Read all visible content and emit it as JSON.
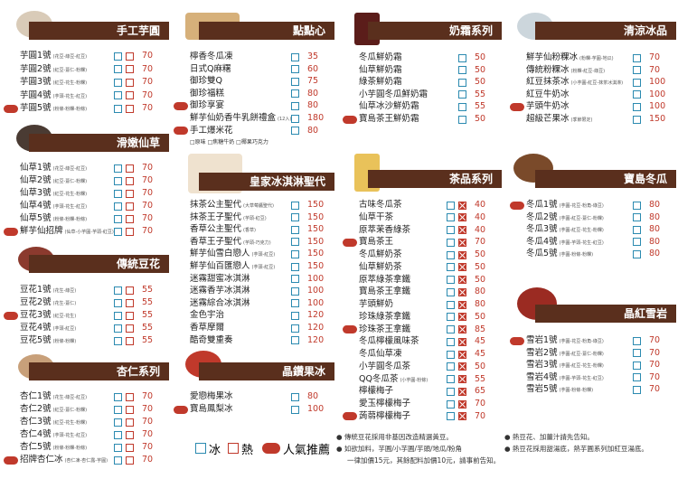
{
  "sections": [
    {
      "title": "手工芋圓",
      "boxes": [
        "ice",
        "hot"
      ],
      "items": [
        {
          "name": "芋圓1號",
          "note": "(花豆-綠豆-紅豆)",
          "price": "70"
        },
        {
          "name": "芋圓2號",
          "note": "(紅豆-薏仁-粉粿)",
          "price": "70"
        },
        {
          "name": "芋圓3號",
          "note": "(紅豆-花生-粉粿)",
          "price": "70"
        },
        {
          "name": "芋圓4號",
          "note": "(芋頭-花生-紅豆)",
          "price": "70"
        },
        {
          "name": "芋圓5號",
          "note": "(粉條-粉粿-粉條)",
          "price": "70",
          "popular": true
        }
      ]
    },
    {
      "title": "滑嫩仙草",
      "boxes": [
        "ice",
        "hot"
      ],
      "items": [
        {
          "name": "仙草1號",
          "note": "(花豆-綠豆-紅豆)",
          "price": "70"
        },
        {
          "name": "仙草2號",
          "note": "(紅豆-薏仁-粉粿)",
          "price": "70"
        },
        {
          "name": "仙草3號",
          "note": "(紅豆-花生-粉粿)",
          "price": "70"
        },
        {
          "name": "仙草4號",
          "note": "(芋頭-花生-紅豆)",
          "price": "70"
        },
        {
          "name": "仙草5號",
          "note": "(粉條-粉粿-粉條)",
          "price": "70"
        },
        {
          "name": "鮮芋仙招牌",
          "note": "(仙草-小芋圓-芋頭-紅豆)",
          "price": "70",
          "popular": true
        }
      ]
    },
    {
      "title": "傳統豆花",
      "boxes": [
        "ice",
        "hot"
      ],
      "items": [
        {
          "name": "豆花1號",
          "note": "(花生-綠豆)",
          "price": "55"
        },
        {
          "name": "豆花2號",
          "note": "(花生-薏仁)",
          "price": "55"
        },
        {
          "name": "豆花3號",
          "note": "(紅豆-花生)",
          "price": "55",
          "popular": true
        },
        {
          "name": "豆花4號",
          "note": "(芋頭-紅豆)",
          "price": "55"
        },
        {
          "name": "豆花5號",
          "note": "(粉條-粉粿)",
          "price": "55"
        }
      ]
    },
    {
      "title": "杏仁系列",
      "boxes": [
        "ice",
        "hot"
      ],
      "items": [
        {
          "name": "杏仁1號",
          "note": "(花生-綠豆-紅豆)",
          "price": "70"
        },
        {
          "name": "杏仁2號",
          "note": "(紅豆-薏仁-粉粿)",
          "price": "70"
        },
        {
          "name": "杏仁3號",
          "note": "(紅豆-花生-粉粿)",
          "price": "70"
        },
        {
          "name": "杏仁4號",
          "note": "(芋頭-花生-紅豆)",
          "price": "70"
        },
        {
          "name": "杏仁5號",
          "note": "(粉條-粉粿-粉條)",
          "price": "70"
        },
        {
          "name": "招牌杏仁冰",
          "note": "(杏仁凍-杏仁露-芋圓)",
          "price": "70",
          "popular": true
        }
      ]
    },
    {
      "title": "點點心",
      "boxes": [
        "plain"
      ],
      "items": [
        {
          "name": "檸香冬瓜凍",
          "price": "35"
        },
        {
          "name": "日式Q麻糬",
          "price": "60"
        },
        {
          "name": "御珍雙Q",
          "price": "75"
        },
        {
          "name": "御珍福糕",
          "price": "80"
        },
        {
          "name": "御珍享宴",
          "price": "80",
          "popular": true
        },
        {
          "name": "鮮芋仙奶香牛乳餅禮盒",
          "note": "(12入)",
          "price": "180"
        },
        {
          "name": "手工爆米花",
          "price": "80",
          "popular": true
        }
      ],
      "subnote": "□原味 □焦糖牛奶 □椰果巧克力"
    },
    {
      "title": "皇家冰淇淋聖代",
      "boxes": [
        "ice"
      ],
      "items": [
        {
          "name": "抹茶公主聖代",
          "note": "(大草莓醬聖代)",
          "price": "150"
        },
        {
          "name": "抹茶王子聖代",
          "note": "(芋頭-紅豆)",
          "price": "150"
        },
        {
          "name": "香草公主聖代",
          "note": "(香草)",
          "price": "150"
        },
        {
          "name": "香草王子聖代",
          "note": "(芋頭-巧克力)",
          "price": "150"
        },
        {
          "name": "鮮芋仙雪白戀人",
          "note": "(芋頭-紅豆)",
          "price": "150"
        },
        {
          "name": "鮮芋仙百匯戀人",
          "note": "(芋頭-紅豆)",
          "price": "150"
        },
        {
          "name": "迷霧甜蜜冰淇淋",
          "price": "100"
        },
        {
          "name": "迷霧香芋冰淇淋",
          "price": "100"
        },
        {
          "name": "迷霧綜合冰淇淋",
          "price": "100"
        },
        {
          "name": "金色宇治",
          "price": "120"
        },
        {
          "name": "香草摩爾",
          "price": "120"
        },
        {
          "name": "酷奇雙重奏",
          "price": "120"
        }
      ]
    },
    {
      "title": "晶鑽果冰",
      "boxes": [
        "ice"
      ],
      "items": [
        {
          "name": "愛戀梅果冰",
          "price": "80"
        },
        {
          "name": "寶島鳳梨冰",
          "price": "100",
          "popular": true
        }
      ]
    },
    {
      "title": "奶霜系列",
      "boxes": [
        "ice"
      ],
      "items": [
        {
          "name": "冬瓜鮮奶霜",
          "price": "50"
        },
        {
          "name": "仙草鮮奶霜",
          "price": "50"
        },
        {
          "name": "綠茶鮮奶霜",
          "price": "50"
        },
        {
          "name": "小芋圓冬瓜鮮奶霜",
          "price": "55"
        },
        {
          "name": "仙草冰沙鮮奶霜",
          "price": "55"
        },
        {
          "name": "寶島茶王鮮奶霜",
          "price": "50",
          "popular": true
        }
      ]
    },
    {
      "title": "茶品系列",
      "boxes": [
        "ice",
        "hot-x"
      ],
      "items": [
        {
          "name": "古味冬瓜茶",
          "price": "40"
        },
        {
          "name": "仙草干茶",
          "price": "40"
        },
        {
          "name": "原萃茉香綠茶",
          "price": "40"
        },
        {
          "name": "寶島茶王",
          "price": "70",
          "popular": true
        },
        {
          "name": "冬瓜鮮奶茶",
          "price": "50"
        },
        {
          "name": "仙草鮮奶茶",
          "price": "50"
        },
        {
          "name": "原萃綠茶拿鐵",
          "price": "50"
        },
        {
          "name": "寶島茶王拿鐵",
          "price": "80"
        },
        {
          "name": "芋頭鮮奶",
          "price": "80"
        },
        {
          "name": "珍珠綠茶拿鐵",
          "price": "50"
        },
        {
          "name": "珍珠茶王拿鐵",
          "price": "85",
          "popular": true
        },
        {
          "name": "冬瓜檸檬風味茶",
          "price": "45"
        },
        {
          "name": "冬瓜仙草凍",
          "price": "45"
        },
        {
          "name": "小芋圓冬瓜茶",
          "price": "50"
        },
        {
          "name": "QQ冬瓜茶",
          "note": "(小芋圓-粉條)",
          "price": "55"
        },
        {
          "name": "檸檬梅子",
          "price": "65"
        },
        {
          "name": "愛玉檸檬梅子",
          "price": "70"
        },
        {
          "name": "蒟蒻檸檬梅子",
          "price": "70",
          "popular": true
        }
      ]
    },
    {
      "title": "清涼冰品",
      "boxes": [
        "ice"
      ],
      "items": [
        {
          "name": "鮮芋仙粉粿冰",
          "note": "(粉粿-芋圓-地瓜)",
          "price": "70"
        },
        {
          "name": "傳統粉粿冰",
          "note": "(粉粿-紅豆-綠豆)",
          "price": "70"
        },
        {
          "name": "紅豆抹茶冰",
          "note": "(小芋圓-紅豆-抹茶冰淇淋)",
          "price": "100"
        },
        {
          "name": "紅豆牛奶冰",
          "price": "100"
        },
        {
          "name": "芋頭牛奶冰",
          "price": "100",
          "popular": true
        },
        {
          "name": "超級芒果冰",
          "note": "(季節限定)",
          "price": "150"
        }
      ]
    },
    {
      "title": "寶島冬瓜",
      "boxes": [
        "ice"
      ],
      "items": [
        {
          "name": "冬瓜1號",
          "note": "(芋圓-花豆-粉角-綠豆)",
          "price": "80",
          "popular": true
        },
        {
          "name": "冬瓜2號",
          "note": "(芋圓-紅豆-薏仁-粉粿)",
          "price": "80"
        },
        {
          "name": "冬瓜3號",
          "note": "(芋圓-紅豆-花生-粉粿)",
          "price": "80"
        },
        {
          "name": "冬瓜4號",
          "note": "(芋圓-芋頭-花生-紅豆)",
          "price": "80"
        },
        {
          "name": "冬瓜5號",
          "note": "(芋圓-粉條-粉粿)",
          "price": "80"
        }
      ]
    },
    {
      "title": "晶紅雪岩",
      "boxes": [
        "ice"
      ],
      "items": [
        {
          "name": "雪岩1號",
          "note": "(芋圓-花豆-粉角-綠豆)",
          "price": "70",
          "popular": true
        },
        {
          "name": "雪岩2號",
          "note": "(芋圓-紅豆-薏仁-粉粿)",
          "price": "70"
        },
        {
          "name": "雪岩3號",
          "note": "(芋圓-紅豆-花生-粉粿)",
          "price": "70"
        },
        {
          "name": "雪岩4號",
          "note": "(芋圓-芋頭-花生-紅豆)",
          "price": "70"
        },
        {
          "name": "雪岩5號",
          "note": "(芋圓-粉條-粉粿)",
          "price": "70"
        }
      ]
    }
  ],
  "legend": {
    "ice": "冰",
    "hot": "熱",
    "popular": "人氣推薦"
  },
  "notes": [
    "● 傳統豆花採用非基因改造精選黃豆。",
    "● 如欲加料，芋圓/小芋圓/芋頭/地瓜/粉角",
    "一律加價15元，其餘配料加價10元，請事前告知。",
    "● 熱豆花、加薑汁請先告知。",
    "● 熱豆花採用甜湯底，熱芋圓系列加紅豆湯底。"
  ]
}
